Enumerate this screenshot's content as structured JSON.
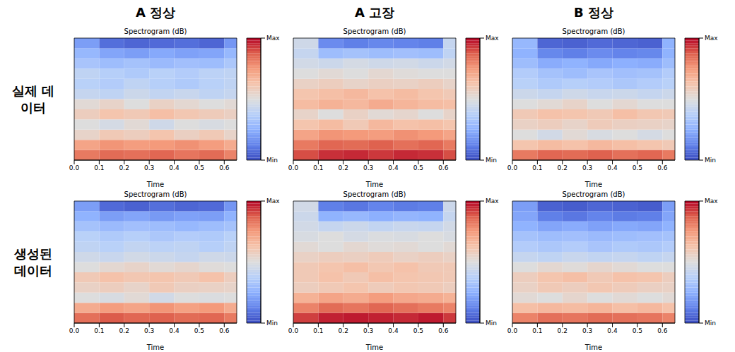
{
  "column_titles": [
    "A 정상",
    "A 고장",
    "B 정상"
  ],
  "row_titles": [
    "실제 데이터",
    "생성된 데이터"
  ],
  "chart_data": [
    {
      "type": "heatmap",
      "title": "Spectrogram (dB)",
      "x_label": "Time",
      "x_bins": [
        0,
        0.1,
        0.2,
        0.3,
        0.4,
        0.5,
        0.6,
        0.65
      ],
      "y_bins": [
        0,
        1,
        2,
        3,
        4,
        5,
        6,
        7,
        8,
        9,
        10,
        11,
        12
      ],
      "xlim": [
        0,
        0.65
      ],
      "ylim": [
        0,
        12
      ],
      "xticks": [
        {
          "value": 0,
          "label": "0.0"
        },
        0.1,
        0.2,
        0.3,
        0.4,
        0.5,
        0.6
      ],
      "tick_labels": "x",
      "cells": [
        [
          0.82,
          0.85,
          0.84,
          0.86,
          0.83,
          0.85,
          0.8
        ],
        [
          0.72,
          0.76,
          0.74,
          0.75,
          0.77,
          0.74,
          0.7
        ],
        [
          0.55,
          0.6,
          0.58,
          0.62,
          0.57,
          0.6,
          0.55
        ],
        [
          0.5,
          0.47,
          0.52,
          0.45,
          0.5,
          0.48,
          0.5
        ],
        [
          0.58,
          0.62,
          0.6,
          0.64,
          0.61,
          0.59,
          0.57
        ],
        [
          0.52,
          0.55,
          0.5,
          0.56,
          0.53,
          0.5,
          0.52
        ],
        [
          0.42,
          0.4,
          0.44,
          0.41,
          0.43,
          0.4,
          0.42
        ],
        [
          0.38,
          0.36,
          0.4,
          0.37,
          0.35,
          0.38,
          0.4
        ],
        [
          0.4,
          0.37,
          0.35,
          0.38,
          0.36,
          0.39,
          0.4
        ],
        [
          0.33,
          0.3,
          0.32,
          0.29,
          0.31,
          0.3,
          0.34
        ],
        [
          0.28,
          0.22,
          0.2,
          0.23,
          0.21,
          0.22,
          0.28
        ],
        [
          0.2,
          0.08,
          0.06,
          0.07,
          0.08,
          0.06,
          0.18
        ]
      ],
      "colorbar": {
        "range": [
          0,
          1
        ],
        "ticks": [
          {
            "value": 0,
            "label": "Min"
          },
          {
            "value": 1,
            "label": "Max"
          }
        ]
      }
    },
    {
      "type": "heatmap",
      "title": "Spectrogram (dB)",
      "x_label": "Time",
      "x_bins": [
        0,
        0.1,
        0.2,
        0.3,
        0.4,
        0.5,
        0.6,
        0.65
      ],
      "y_bins": [
        0,
        1,
        2,
        3,
        4,
        5,
        6,
        7,
        8,
        9,
        10,
        11,
        12
      ],
      "xlim": [
        0,
        0.65
      ],
      "ylim": [
        0,
        12
      ],
      "xticks": [
        {
          "value": 0,
          "label": "0.0"
        },
        0.1,
        0.2,
        0.3,
        0.4,
        0.5,
        0.6
      ],
      "tick_labels": "x",
      "cells": [
        [
          0.9,
          0.94,
          0.95,
          0.93,
          0.95,
          0.94,
          0.9
        ],
        [
          0.82,
          0.86,
          0.85,
          0.87,
          0.84,
          0.86,
          0.82
        ],
        [
          0.72,
          0.76,
          0.75,
          0.74,
          0.77,
          0.75,
          0.72
        ],
        [
          0.62,
          0.65,
          0.6,
          0.66,
          0.63,
          0.64,
          0.62
        ],
        [
          0.55,
          0.5,
          0.56,
          0.52,
          0.54,
          0.5,
          0.55
        ],
        [
          0.65,
          0.68,
          0.66,
          0.7,
          0.67,
          0.65,
          0.64
        ],
        [
          0.62,
          0.64,
          0.66,
          0.63,
          0.65,
          0.62,
          0.6
        ],
        [
          0.56,
          0.58,
          0.55,
          0.57,
          0.56,
          0.58,
          0.55
        ],
        [
          0.5,
          0.52,
          0.5,
          0.53,
          0.51,
          0.5,
          0.5
        ],
        [
          0.46,
          0.44,
          0.47,
          0.45,
          0.46,
          0.44,
          0.46
        ],
        [
          0.42,
          0.3,
          0.32,
          0.3,
          0.31,
          0.3,
          0.4
        ],
        [
          0.45,
          0.15,
          0.12,
          0.14,
          0.13,
          0.12,
          0.42
        ]
      ],
      "colorbar": {
        "range": [
          0,
          1
        ],
        "ticks": [
          {
            "value": 0,
            "label": "Min"
          },
          {
            "value": 1,
            "label": "Max"
          }
        ]
      }
    },
    {
      "type": "heatmap",
      "title": "Spectrogram (dB)",
      "x_label": "Time",
      "x_bins": [
        0,
        0.1,
        0.2,
        0.3,
        0.4,
        0.5,
        0.6,
        0.65
      ],
      "y_bins": [
        0,
        1,
        2,
        3,
        4,
        5,
        6,
        7,
        8,
        9,
        10,
        11,
        12
      ],
      "xlim": [
        0,
        0.65
      ],
      "ylim": [
        0,
        12
      ],
      "xticks": [
        {
          "value": 0,
          "label": "0.0"
        },
        0.1,
        0.2,
        0.3,
        0.4,
        0.5,
        0.6
      ],
      "tick_labels": "x",
      "cells": [
        [
          0.82,
          0.86,
          0.85,
          0.87,
          0.84,
          0.86,
          0.82
        ],
        [
          0.62,
          0.65,
          0.63,
          0.66,
          0.64,
          0.62,
          0.6
        ],
        [
          0.5,
          0.46,
          0.52,
          0.48,
          0.5,
          0.47,
          0.5
        ],
        [
          0.56,
          0.58,
          0.55,
          0.59,
          0.57,
          0.56,
          0.55
        ],
        [
          0.6,
          0.63,
          0.62,
          0.6,
          0.64,
          0.61,
          0.6
        ],
        [
          0.5,
          0.52,
          0.55,
          0.5,
          0.53,
          0.5,
          0.5
        ],
        [
          0.44,
          0.42,
          0.45,
          0.43,
          0.44,
          0.42,
          0.44
        ],
        [
          0.38,
          0.35,
          0.37,
          0.36,
          0.34,
          0.36,
          0.38
        ],
        [
          0.36,
          0.32,
          0.3,
          0.33,
          0.31,
          0.32,
          0.36
        ],
        [
          0.3,
          0.24,
          0.26,
          0.23,
          0.25,
          0.24,
          0.3
        ],
        [
          0.26,
          0.14,
          0.12,
          0.15,
          0.13,
          0.14,
          0.26
        ],
        [
          0.28,
          0.06,
          0.05,
          0.07,
          0.06,
          0.05,
          0.26
        ]
      ],
      "colorbar": {
        "range": [
          0,
          1
        ],
        "ticks": [
          {
            "value": 0,
            "label": "Min"
          },
          {
            "value": 1,
            "label": "Max"
          }
        ]
      }
    },
    {
      "type": "heatmap",
      "title": "Spectrogram (dB)",
      "x_label": "Time",
      "x_bins": [
        0,
        0.1,
        0.2,
        0.3,
        0.4,
        0.5,
        0.6,
        0.65
      ],
      "y_bins": [
        0,
        1,
        2,
        3,
        4,
        5,
        6,
        7,
        8,
        9,
        10,
        11,
        12
      ],
      "xlim": [
        0,
        0.65
      ],
      "ylim": [
        0,
        12
      ],
      "xticks": [
        {
          "value": 0,
          "label": "0.0"
        },
        0.1,
        0.2,
        0.3,
        0.4,
        0.5,
        0.6
      ],
      "tick_labels": "x",
      "cells": [
        [
          0.84,
          0.88,
          0.86,
          0.87,
          0.85,
          0.86,
          0.82
        ],
        [
          0.7,
          0.74,
          0.72,
          0.76,
          0.73,
          0.75,
          0.7
        ],
        [
          0.5,
          0.48,
          0.52,
          0.46,
          0.5,
          0.49,
          0.5
        ],
        [
          0.56,
          0.58,
          0.55,
          0.6,
          0.57,
          0.56,
          0.55
        ],
        [
          0.6,
          0.63,
          0.61,
          0.62,
          0.6,
          0.63,
          0.58
        ],
        [
          0.5,
          0.53,
          0.55,
          0.52,
          0.54,
          0.51,
          0.5
        ],
        [
          0.45,
          0.43,
          0.46,
          0.44,
          0.42,
          0.45,
          0.44
        ],
        [
          0.4,
          0.38,
          0.41,
          0.39,
          0.4,
          0.37,
          0.4
        ],
        [
          0.38,
          0.35,
          0.37,
          0.34,
          0.36,
          0.35,
          0.38
        ],
        [
          0.32,
          0.29,
          0.31,
          0.3,
          0.28,
          0.3,
          0.32
        ],
        [
          0.26,
          0.2,
          0.22,
          0.19,
          0.21,
          0.2,
          0.26
        ],
        [
          0.2,
          0.07,
          0.05,
          0.08,
          0.06,
          0.07,
          0.18
        ]
      ],
      "colorbar": {
        "range": [
          0,
          1
        ],
        "ticks": [
          {
            "value": 0,
            "label": "Min"
          },
          {
            "value": 1,
            "label": "Max"
          }
        ]
      }
    },
    {
      "type": "heatmap",
      "title": "Spectrogram (dB)",
      "x_label": "Time",
      "x_bins": [
        0,
        0.1,
        0.2,
        0.3,
        0.4,
        0.5,
        0.6,
        0.65
      ],
      "y_bins": [
        0,
        1,
        2,
        3,
        4,
        5,
        6,
        7,
        8,
        9,
        10,
        11,
        12
      ],
      "xlim": [
        0,
        0.65
      ],
      "ylim": [
        0,
        12
      ],
      "xticks": [
        {
          "value": 0,
          "label": "0.0"
        },
        0.1,
        0.2,
        0.3,
        0.4,
        0.5,
        0.6
      ],
      "tick_labels": "x",
      "cells": [
        [
          0.92,
          0.96,
          0.97,
          0.96,
          0.95,
          0.97,
          0.93
        ],
        [
          0.8,
          0.85,
          0.83,
          0.86,
          0.84,
          0.82,
          0.8
        ],
        [
          0.68,
          0.72,
          0.7,
          0.74,
          0.71,
          0.7,
          0.68
        ],
        [
          0.58,
          0.6,
          0.62,
          0.59,
          0.61,
          0.6,
          0.58
        ],
        [
          0.6,
          0.63,
          0.6,
          0.64,
          0.62,
          0.61,
          0.6
        ],
        [
          0.6,
          0.62,
          0.64,
          0.61,
          0.63,
          0.6,
          0.6
        ],
        [
          0.56,
          0.58,
          0.57,
          0.59,
          0.56,
          0.58,
          0.56
        ],
        [
          0.52,
          0.5,
          0.53,
          0.51,
          0.52,
          0.5,
          0.52
        ],
        [
          0.48,
          0.5,
          0.47,
          0.49,
          0.48,
          0.5,
          0.48
        ],
        [
          0.46,
          0.42,
          0.44,
          0.41,
          0.43,
          0.42,
          0.46
        ],
        [
          0.44,
          0.26,
          0.28,
          0.25,
          0.27,
          0.26,
          0.42
        ],
        [
          0.46,
          0.12,
          0.1,
          0.13,
          0.11,
          0.12,
          0.44
        ]
      ],
      "colorbar": {
        "range": [
          0,
          1
        ],
        "ticks": [
          {
            "value": 0,
            "label": "Min"
          },
          {
            "value": 1,
            "label": "Max"
          }
        ]
      }
    },
    {
      "type": "heatmap",
      "title": "Spectrogram (dB)",
      "x_label": "Time",
      "x_bins": [
        0,
        0.1,
        0.2,
        0.3,
        0.4,
        0.5,
        0.6,
        0.65
      ],
      "y_bins": [
        0,
        1,
        2,
        3,
        4,
        5,
        6,
        7,
        8,
        9,
        10,
        11,
        12
      ],
      "xlim": [
        0,
        0.65
      ],
      "ylim": [
        0,
        12
      ],
      "xticks": [
        {
          "value": 0,
          "label": "0.0"
        },
        0.1,
        0.2,
        0.3,
        0.4,
        0.5,
        0.6
      ],
      "tick_labels": "x",
      "cells": [
        [
          0.8,
          0.84,
          0.83,
          0.85,
          0.84,
          0.83,
          0.8
        ],
        [
          0.64,
          0.66,
          0.65,
          0.67,
          0.64,
          0.66,
          0.63
        ],
        [
          0.52,
          0.5,
          0.54,
          0.5,
          0.52,
          0.5,
          0.52
        ],
        [
          0.56,
          0.6,
          0.58,
          0.61,
          0.59,
          0.57,
          0.56
        ],
        [
          0.58,
          0.62,
          0.64,
          0.6,
          0.63,
          0.62,
          0.58
        ],
        [
          0.5,
          0.53,
          0.51,
          0.54,
          0.52,
          0.5,
          0.5
        ],
        [
          0.42,
          0.4,
          0.43,
          0.41,
          0.42,
          0.4,
          0.42
        ],
        [
          0.36,
          0.34,
          0.36,
          0.33,
          0.35,
          0.34,
          0.36
        ],
        [
          0.32,
          0.3,
          0.31,
          0.29,
          0.3,
          0.31,
          0.32
        ],
        [
          0.26,
          0.22,
          0.24,
          0.21,
          0.23,
          0.22,
          0.26
        ],
        [
          0.22,
          0.12,
          0.1,
          0.13,
          0.11,
          0.12,
          0.22
        ],
        [
          0.2,
          0.05,
          0.04,
          0.06,
          0.05,
          0.04,
          0.2
        ]
      ],
      "colorbar": {
        "range": [
          0,
          1
        ],
        "ticks": [
          {
            "value": 0,
            "label": "Min"
          },
          {
            "value": 1,
            "label": "Max"
          }
        ]
      }
    }
  ]
}
